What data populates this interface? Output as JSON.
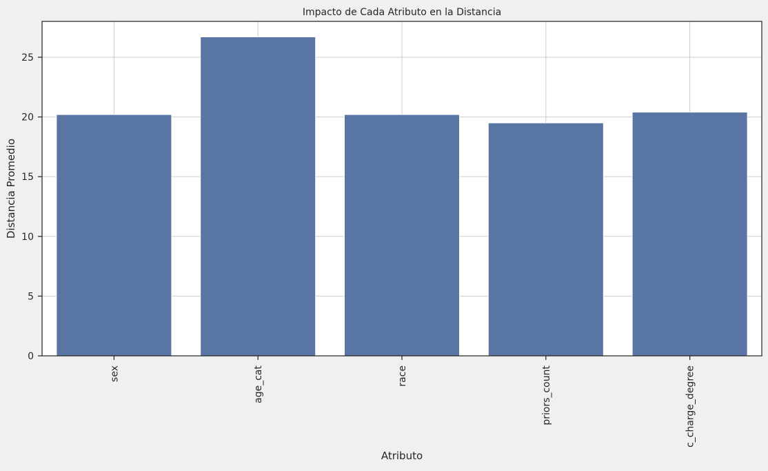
{
  "chart_data": {
    "type": "bar",
    "title": "Impacto de Cada Atributo en la Distancia",
    "xlabel": "Atributo",
    "ylabel": "Distancia Promedio",
    "categories": [
      "sex",
      "age_cat",
      "race",
      "priors_count",
      "c_charge_degree"
    ],
    "values": [
      20.2,
      26.7,
      20.2,
      19.5,
      20.4
    ],
    "ylim": [
      0,
      28
    ],
    "yticks": [
      0,
      5,
      10,
      15,
      20,
      25
    ],
    "grid": true,
    "bar_color": "#5975a4",
    "x_tick_rotation": "vertical"
  }
}
